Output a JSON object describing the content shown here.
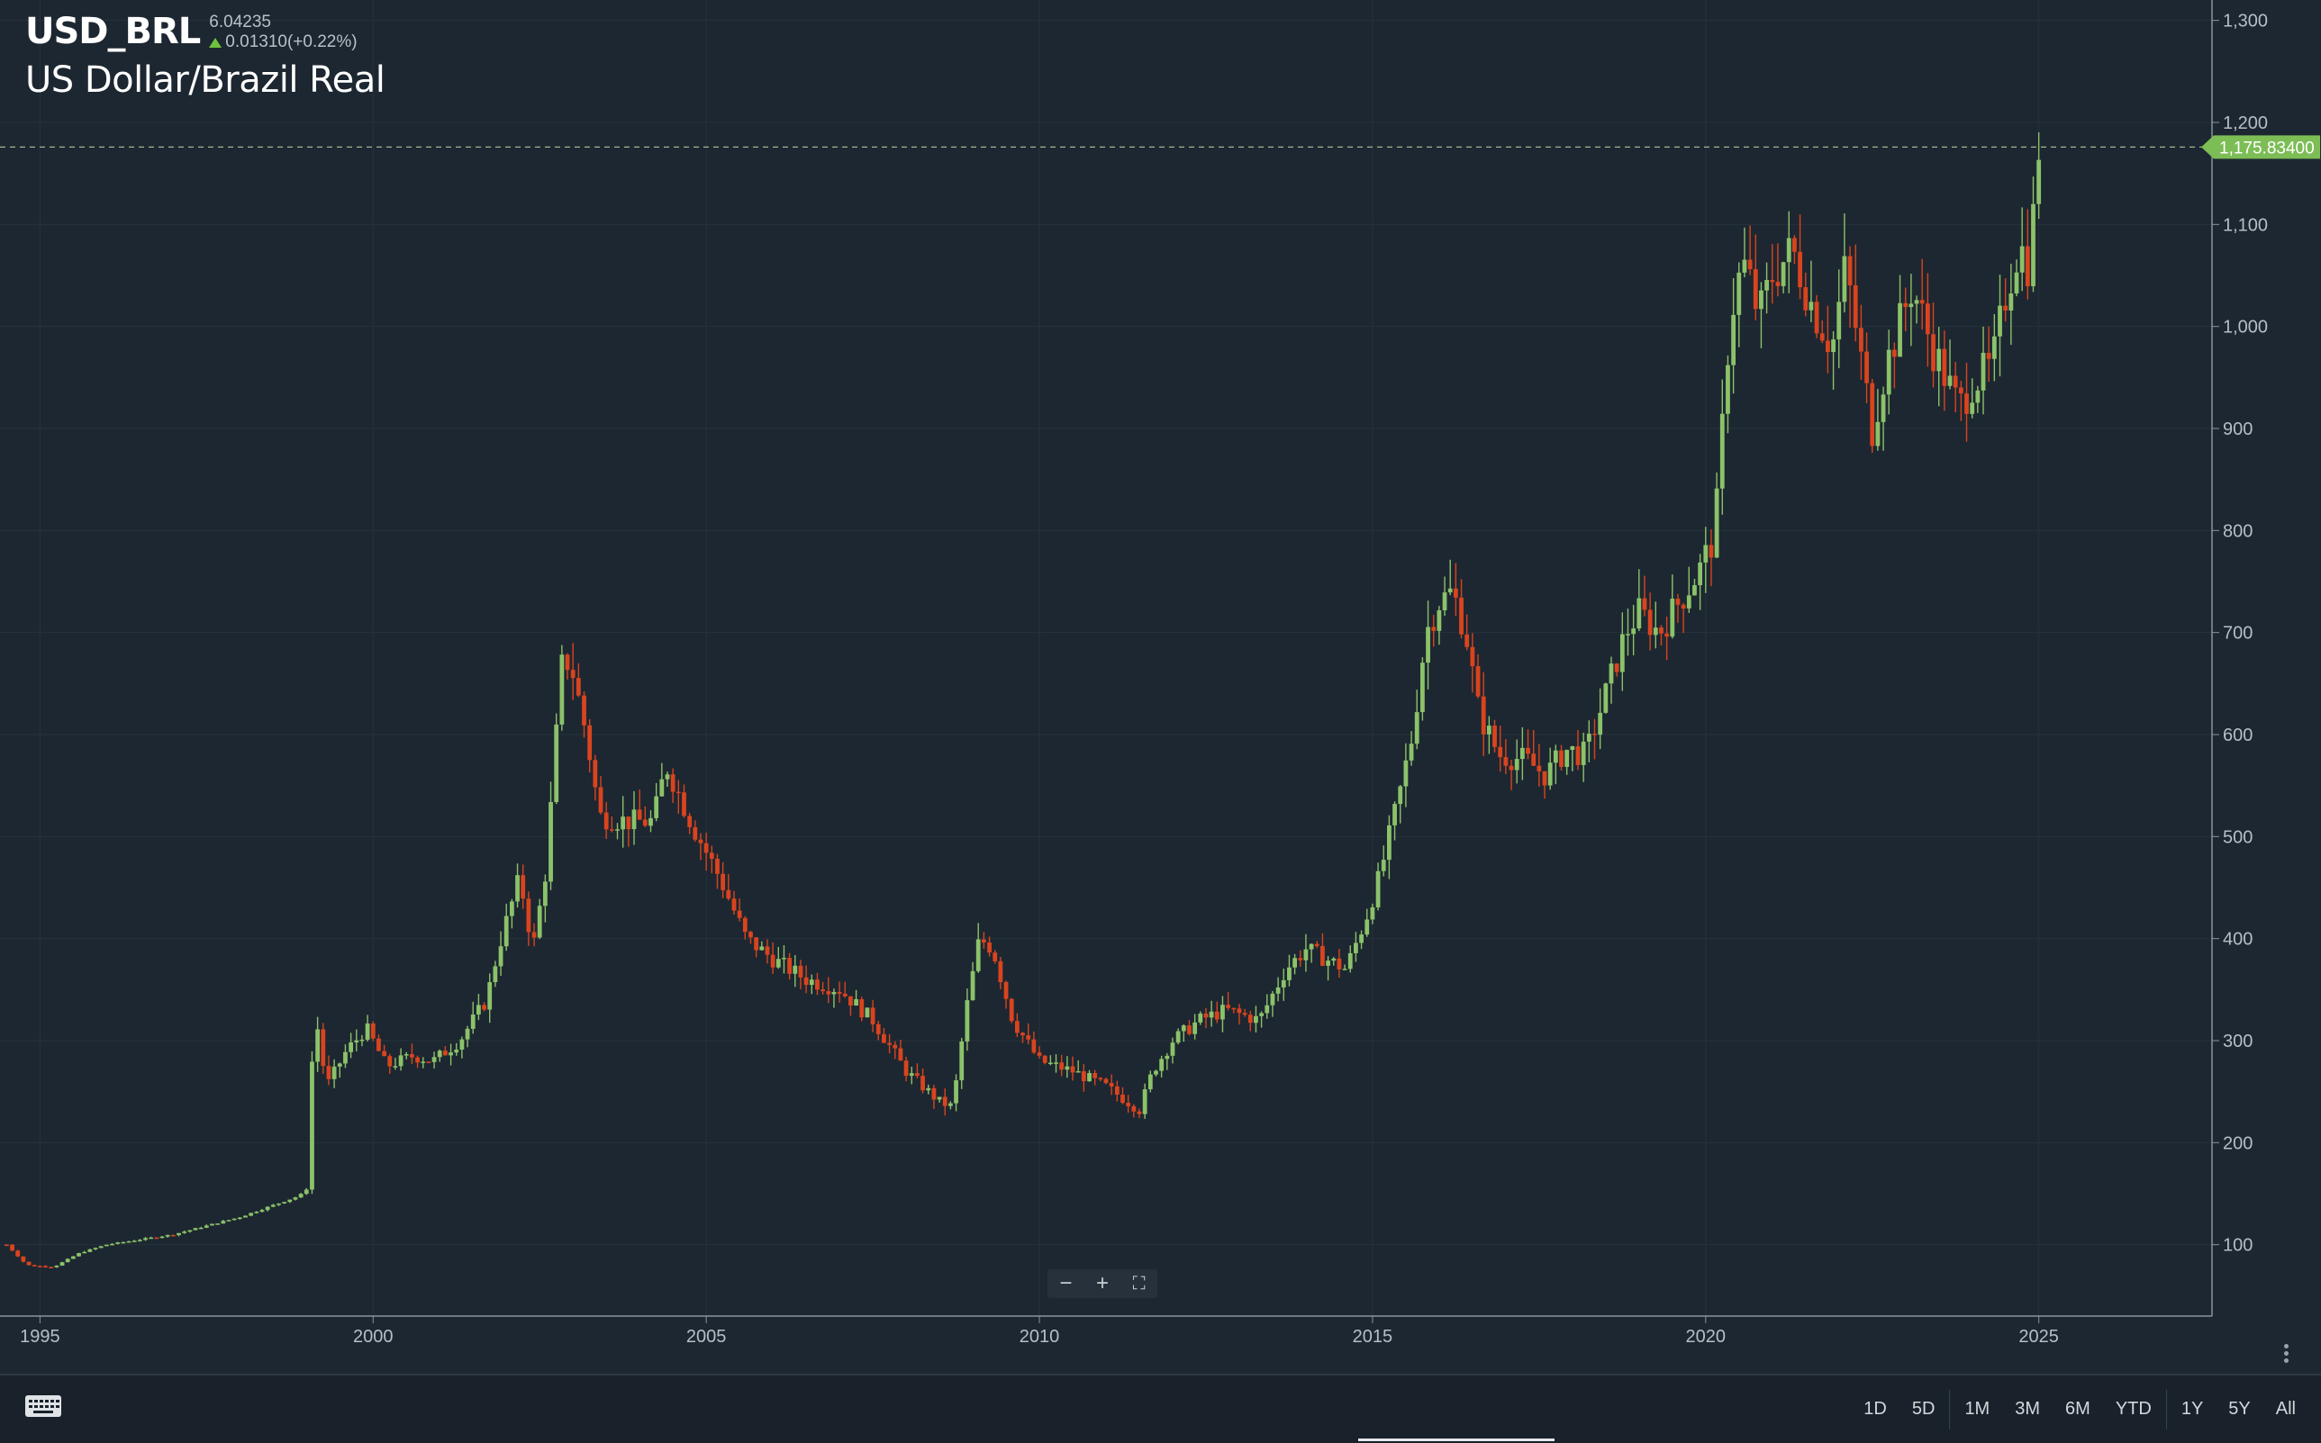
{
  "header": {
    "symbol": "USD_BRL",
    "last_price": "6.04235",
    "change": "0.01310(+0.22%)",
    "name": "US Dollar/Brazil Real"
  },
  "price_marker": {
    "value": 1175.834,
    "label": "1,175.83400"
  },
  "zoom": {
    "minus": "−",
    "plus": "+",
    "fullscreen": "⛶"
  },
  "ranges": [
    "1D",
    "5D",
    "1M",
    "3M",
    "6M",
    "YTD",
    "1Y",
    "5Y",
    "All"
  ],
  "colors": {
    "up": "#8bc26a",
    "down": "#d9441e",
    "background": "#1d2731",
    "grid": "#26323c",
    "marker": "#7cbd55"
  },
  "chart_data": {
    "type": "candlestick",
    "y_ticks": [
      100,
      200,
      300,
      400,
      500,
      600,
      700,
      800,
      900,
      1000,
      1100,
      1200,
      1300
    ],
    "y_tick_labels": [
      "100",
      "200",
      "300",
      "400",
      "500",
      "600",
      "700",
      "800",
      "900",
      "1,000",
      "1,100",
      "1,200",
      "1,300"
    ],
    "x_ticks": [
      1995,
      2000,
      2005,
      2010,
      2015,
      2020,
      2025
    ],
    "x_tick_labels": [
      "1995",
      "2000",
      "2005",
      "2010",
      "2015",
      "2020",
      "2025"
    ],
    "xlim": [
      1994.4,
      2027.6
    ],
    "ylim": [
      30,
      1320
    ],
    "grid": true,
    "close_path": [
      [
        1994.5,
        100
      ],
      [
        1994.8,
        80
      ],
      [
        1995.2,
        78
      ],
      [
        1995.6,
        92
      ],
      [
        1996,
        100
      ],
      [
        1997,
        110
      ],
      [
        1998,
        127
      ],
      [
        1998.9,
        148
      ],
      [
        1999.05,
        158
      ],
      [
        1999.1,
        340
      ],
      [
        1999.3,
        255
      ],
      [
        1999.6,
        290
      ],
      [
        1999.9,
        312
      ],
      [
        2000.2,
        275
      ],
      [
        2000.6,
        285
      ],
      [
        2000.9,
        280
      ],
      [
        2001.3,
        300
      ],
      [
        2001.7,
        340
      ],
      [
        2001.9,
        395
      ],
      [
        2002.2,
        460
      ],
      [
        2002.4,
        390
      ],
      [
        2002.6,
        470
      ],
      [
        2002.75,
        600
      ],
      [
        2002.85,
        680
      ],
      [
        2003.0,
        660
      ],
      [
        2003.2,
        600
      ],
      [
        2003.4,
        520
      ],
      [
        2003.8,
        515
      ],
      [
        2004.2,
        515
      ],
      [
        2004.4,
        570
      ],
      [
        2004.8,
        510
      ],
      [
        2005.2,
        460
      ],
      [
        2005.6,
        400
      ],
      [
        2006.0,
        380
      ],
      [
        2006.5,
        360
      ],
      [
        2007.0,
        350
      ],
      [
        2007.5,
        320
      ],
      [
        2008.0,
        270
      ],
      [
        2008.5,
        240
      ],
      [
        2008.7,
        235
      ],
      [
        2008.9,
        330
      ],
      [
        2009.1,
        400
      ],
      [
        2009.3,
        390
      ],
      [
        2009.6,
        320
      ],
      [
        2010.0,
        280
      ],
      [
        2010.5,
        270
      ],
      [
        2011.0,
        255
      ],
      [
        2011.5,
        232
      ],
      [
        2011.7,
        270
      ],
      [
        2012.0,
        300
      ],
      [
        2012.4,
        320
      ],
      [
        2012.8,
        330
      ],
      [
        2013.3,
        320
      ],
      [
        2013.7,
        370
      ],
      [
        2014.0,
        390
      ],
      [
        2014.3,
        380
      ],
      [
        2014.6,
        370
      ],
      [
        2014.9,
        420
      ],
      [
        2015.1,
        460
      ],
      [
        2015.4,
        540
      ],
      [
        2015.6,
        600
      ],
      [
        2015.8,
        700
      ],
      [
        2016.0,
        730
      ],
      [
        2016.2,
        740
      ],
      [
        2016.4,
        700
      ],
      [
        2016.6,
        620
      ],
      [
        2016.9,
        580
      ],
      [
        2017.3,
        575
      ],
      [
        2017.6,
        560
      ],
      [
        2017.9,
        585
      ],
      [
        2018.2,
        580
      ],
      [
        2018.5,
        640
      ],
      [
        2018.8,
        700
      ],
      [
        2019.0,
        720
      ],
      [
        2019.3,
        700
      ],
      [
        2019.6,
        730
      ],
      [
        2019.9,
        760
      ],
      [
        2020.1,
        790
      ],
      [
        2020.2,
        840
      ],
      [
        2020.3,
        960
      ],
      [
        2020.45,
        1040
      ],
      [
        2020.6,
        1060
      ],
      [
        2020.8,
        1010
      ],
      [
        2021.0,
        1050
      ],
      [
        2021.3,
        1075
      ],
      [
        2021.6,
        1020
      ],
      [
        2021.9,
        980
      ],
      [
        2022.1,
        1060
      ],
      [
        2022.3,
        980
      ],
      [
        2022.5,
        900
      ],
      [
        2022.7,
        960
      ],
      [
        2022.9,
        1000
      ],
      [
        2023.1,
        1040
      ],
      [
        2023.4,
        980
      ],
      [
        2023.6,
        950
      ],
      [
        2023.8,
        920
      ],
      [
        2024.0,
        945
      ],
      [
        2024.3,
        960
      ],
      [
        2024.5,
        1030
      ],
      [
        2024.7,
        1080
      ],
      [
        2024.85,
        1060
      ],
      [
        2024.95,
        1130
      ],
      [
        2025.0,
        1176
      ]
    ]
  }
}
